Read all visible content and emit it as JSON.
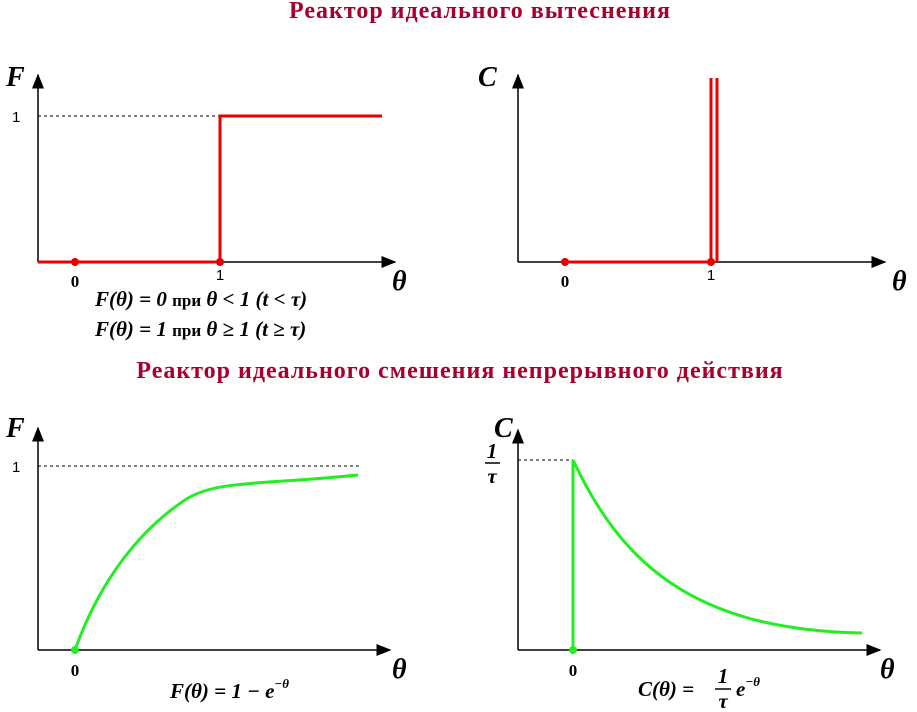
{
  "header": {
    "title_top": "Реактор идеального вытеснения",
    "title_bottom": "Реактор идеального смешения непрерывного действия"
  },
  "panels": [
    {
      "y_label": "F",
      "x_label": "θ",
      "y_tick": "1",
      "x_ticks": [
        "0",
        "1"
      ],
      "formulas": [
        {
          "lhs": "F(θ) = 0",
          "word": "при",
          "cond": "θ < 1",
          "paren": "(t < τ)"
        },
        {
          "lhs": "F(θ) = 1",
          "word": "при",
          "cond": "θ ≥ 1",
          "paren": "(t ≥ τ)"
        }
      ]
    },
    {
      "y_label": "C",
      "x_label": "θ",
      "x_ticks": [
        "0",
        "1"
      ]
    },
    {
      "y_label": "F",
      "x_label": "θ",
      "y_tick": "1",
      "x_ticks": [
        "0"
      ],
      "formula": {
        "lhs": "F(θ) = 1 − e",
        "exp": "−θ"
      }
    },
    {
      "y_label": "C",
      "x_label": "θ",
      "y_tick": {
        "num": "1",
        "den": "τ"
      },
      "x_ticks": [
        "0"
      ],
      "formula": {
        "lhs": "C(θ) =",
        "num": "1",
        "den": "τ",
        "base": "e",
        "exp": "−θ"
      }
    }
  ]
}
